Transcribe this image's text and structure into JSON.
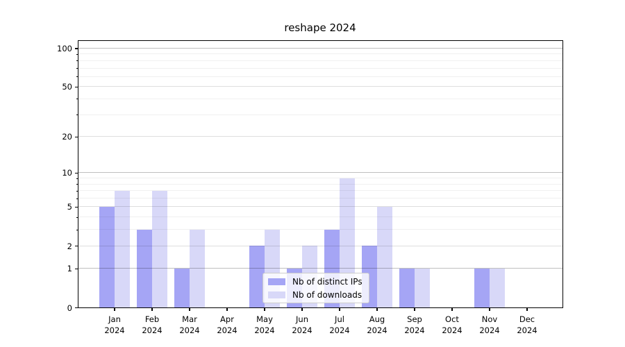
{
  "chart_data": {
    "type": "bar",
    "title": "reshape 2024",
    "categories": [
      "Jan 2024",
      "Feb 2024",
      "Mar 2024",
      "Apr 2024",
      "May 2024",
      "Jun 2024",
      "Jul 2024",
      "Aug 2024",
      "Sep 2024",
      "Oct 2024",
      "Nov 2024",
      "Dec 2024"
    ],
    "series": [
      {
        "name": "Nb of distinct IPs",
        "color": "#a5a5f5",
        "values": [
          5,
          3,
          1,
          0,
          2,
          1,
          3,
          2,
          1,
          0,
          1,
          0
        ]
      },
      {
        "name": "Nb of downloads",
        "color": "#d8d8f8",
        "values": [
          7,
          7,
          3,
          0,
          3,
          2,
          9,
          5,
          1,
          0,
          1,
          0
        ]
      }
    ],
    "xlabel": "",
    "ylabel": "",
    "ylim": [
      0,
      100
    ],
    "yscale": "log-like: position = log10(1+x)",
    "yticks_major": [
      0,
      1,
      2,
      5,
      10,
      20,
      50,
      100
    ],
    "yticks_minor": [
      3,
      4,
      6,
      7,
      8,
      9,
      30,
      40,
      60,
      70,
      80,
      90
    ],
    "grid": true,
    "legend_position": "lower center, inside plot"
  },
  "styles": {
    "grid_decade_color": "rgba(0,0,0,0.25)",
    "grid_major_color": "rgba(0,0,0,0.13)",
    "grid_minor_color": "rgba(0,0,0,0.06)",
    "spine_color": "#000000",
    "background": "#ffffff"
  }
}
